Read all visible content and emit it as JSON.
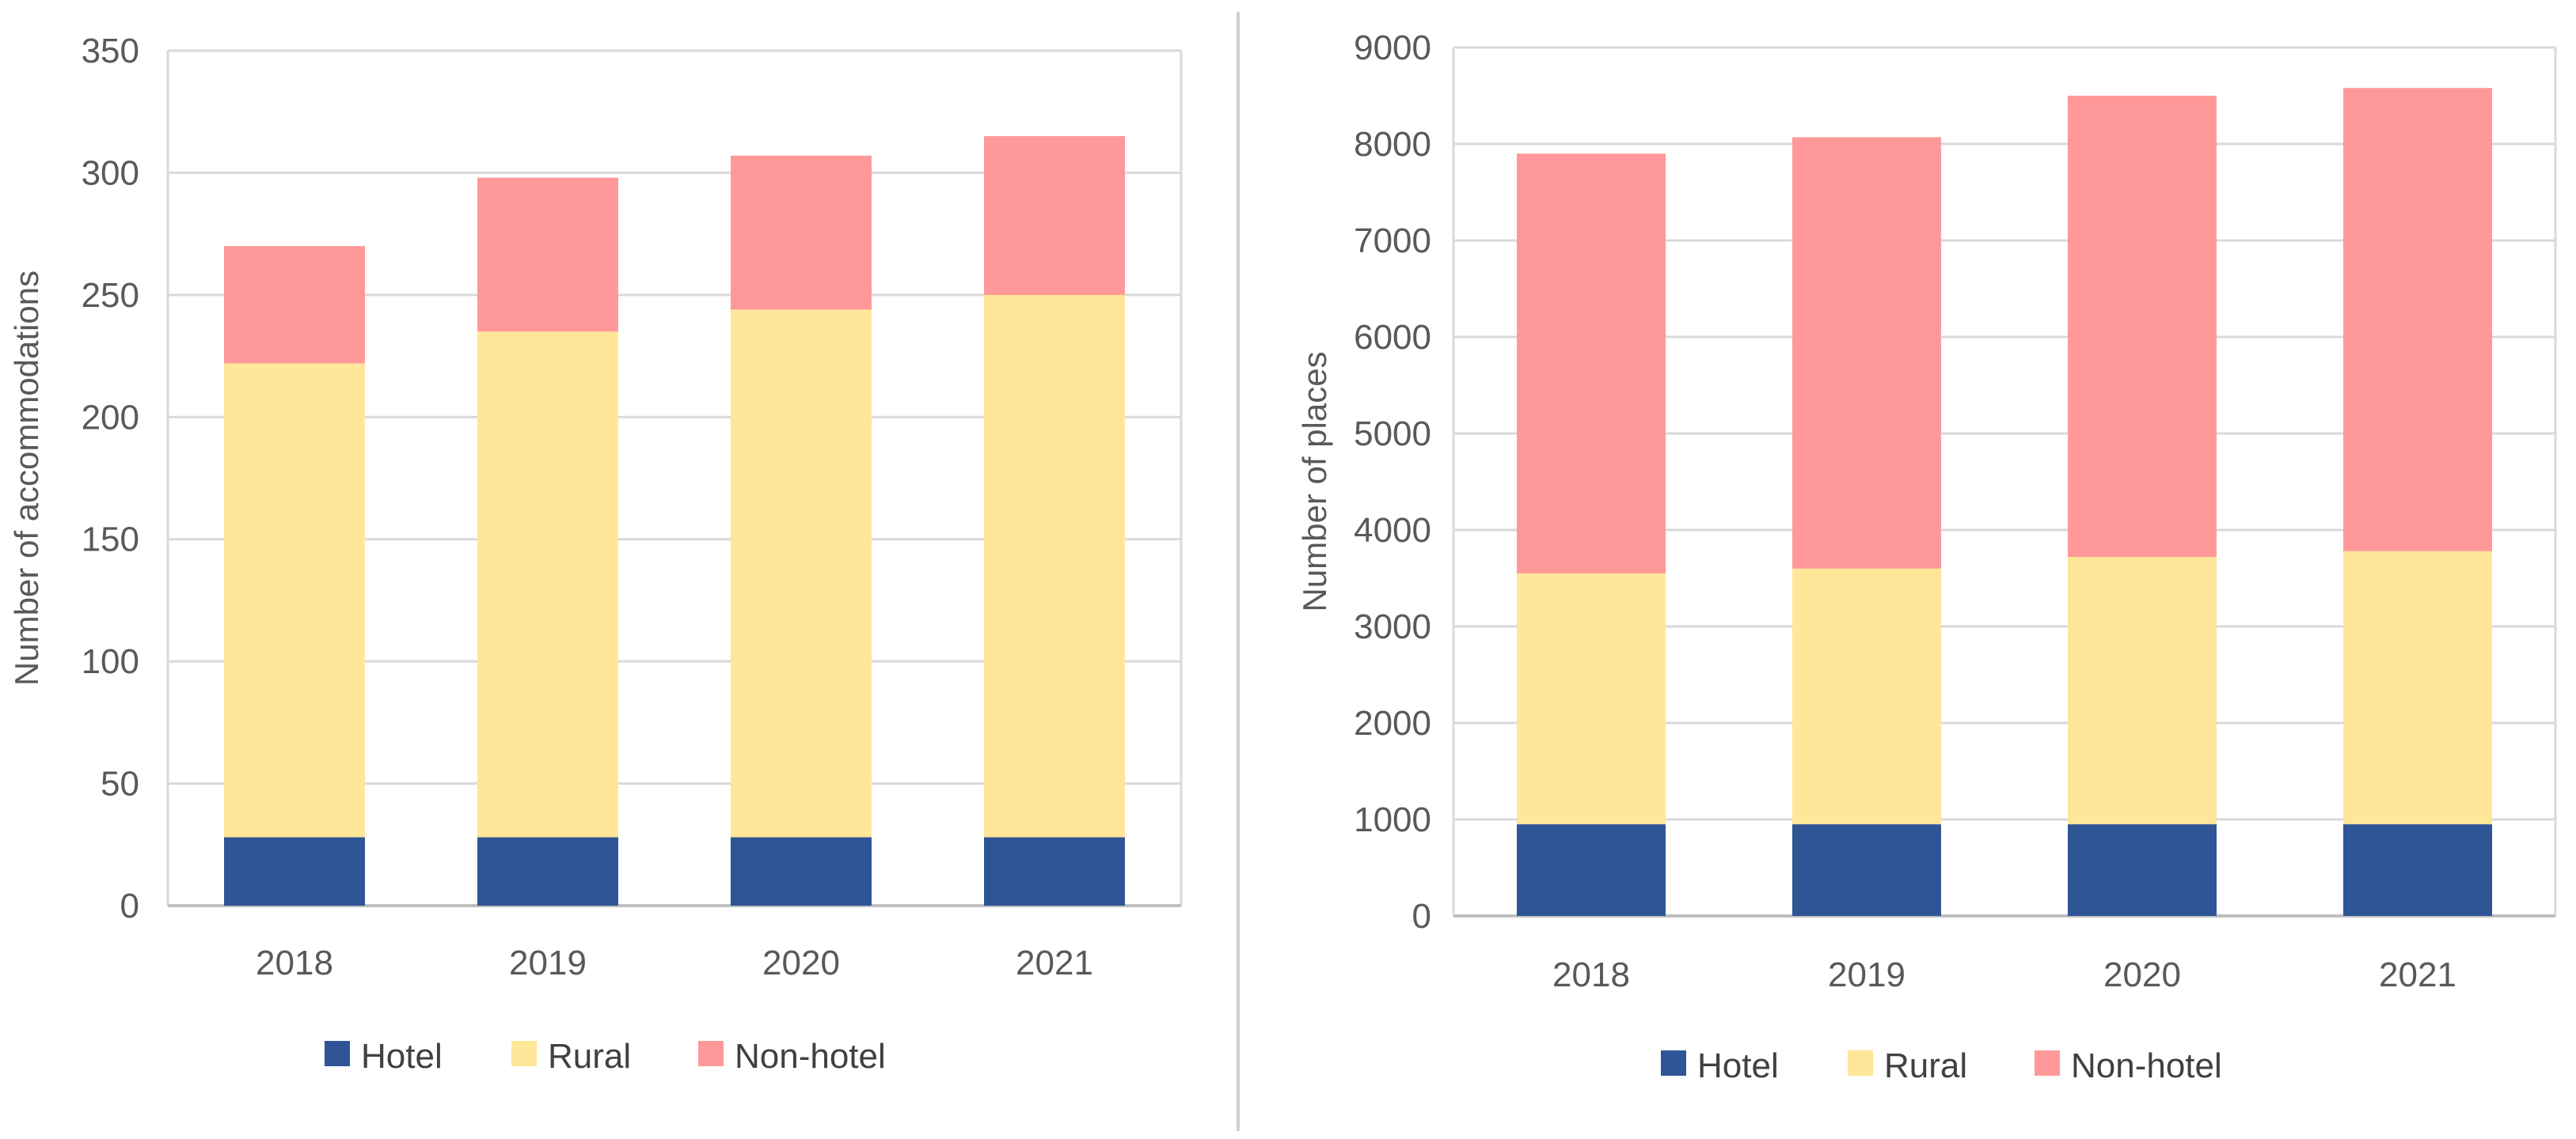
{
  "chart_data": [
    {
      "type": "bar",
      "stacked": true,
      "categories": [
        "2018",
        "2019",
        "2020",
        "2021"
      ],
      "series": [
        {
          "name": "Hotel",
          "color": "#2f5597",
          "values": [
            28,
            28,
            28,
            28
          ]
        },
        {
          "name": "Rural",
          "color": "#ffe699",
          "values": [
            194,
            207,
            216,
            222
          ]
        },
        {
          "name": "Non-hotel",
          "color": "#ff9999",
          "values": [
            48,
            63,
            63,
            65
          ]
        }
      ],
      "ylabel": "Number of accommodations",
      "ylim": [
        0,
        350
      ],
      "yticks": [
        0,
        50,
        100,
        150,
        200,
        250,
        300,
        350
      ],
      "grid": true,
      "legend": "bottom"
    },
    {
      "type": "bar",
      "stacked": true,
      "categories": [
        "2018",
        "2019",
        "2020",
        "2021"
      ],
      "series": [
        {
          "name": "Hotel",
          "color": "#2f5597",
          "values": [
            950,
            950,
            950,
            950
          ]
        },
        {
          "name": "Rural",
          "color": "#ffe699",
          "values": [
            2600,
            2650,
            2770,
            2830
          ]
        },
        {
          "name": "Non-hotel",
          "color": "#ff9999",
          "values": [
            4350,
            4470,
            4780,
            4800
          ]
        }
      ],
      "ylabel": "Number of places",
      "ylim": [
        0,
        9000
      ],
      "yticks": [
        0,
        1000,
        2000,
        3000,
        4000,
        5000,
        6000,
        7000,
        8000,
        9000
      ],
      "grid": true,
      "legend": "bottom"
    }
  ]
}
